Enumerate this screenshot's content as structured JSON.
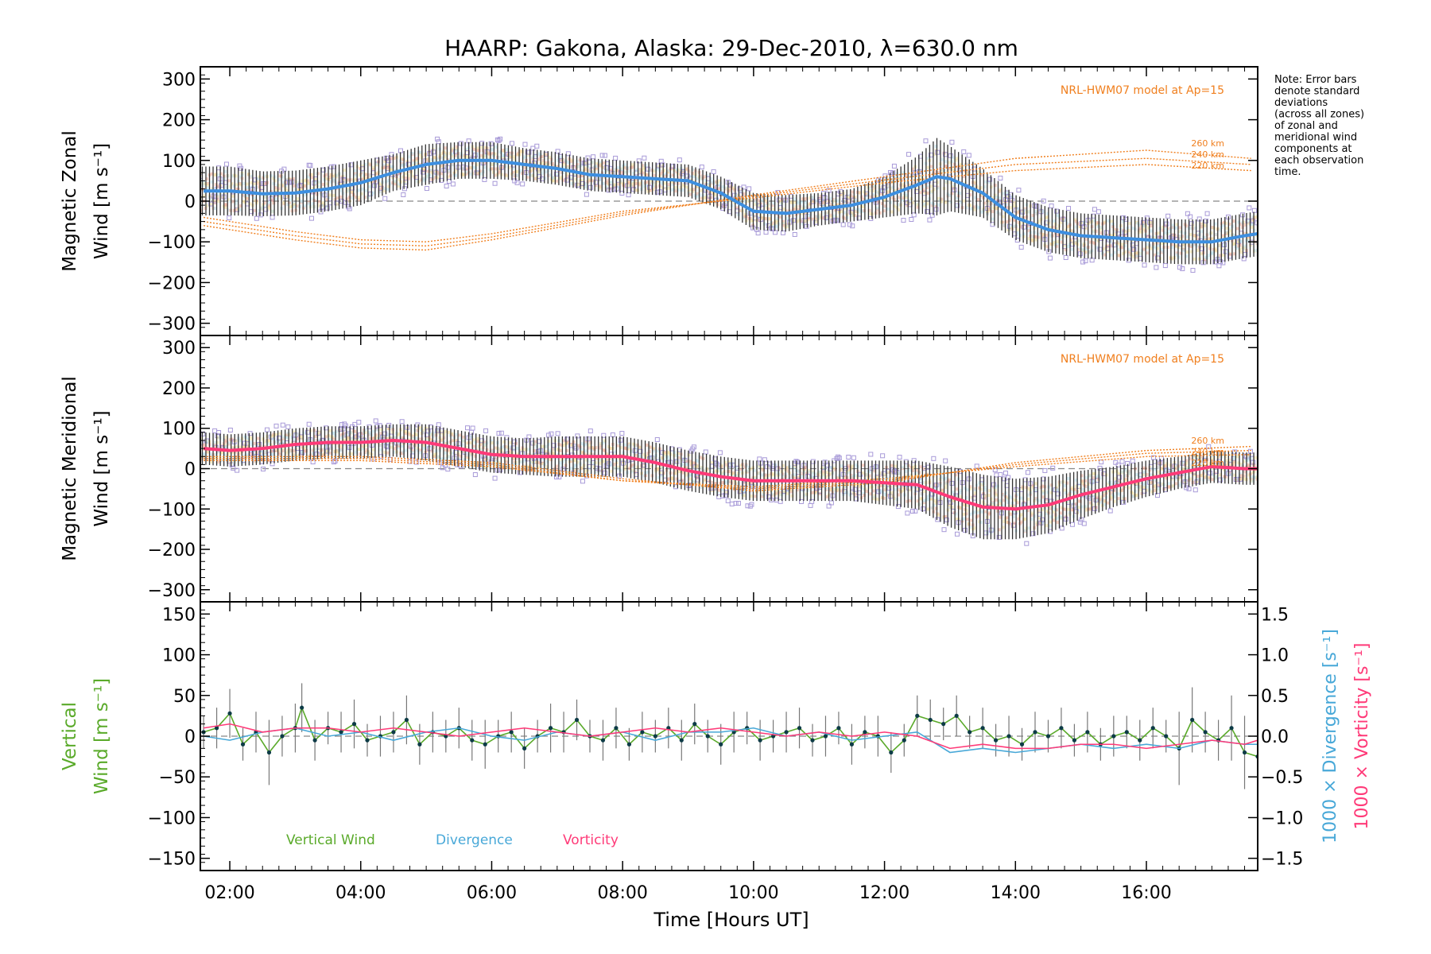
{
  "chart_data": {
    "title": "HAARP: Gakona,  Alaska: 29-Dec-2010, λ=630.0 nm",
    "note": [
      "Note: Error bars",
      "denote standard",
      "deviations",
      "(across all zones)",
      "of zonal and",
      "meridional wind",
      "components at",
      "each observation",
      "time."
    ],
    "x_axis": {
      "label": "Time [Hours UT]",
      "units": "hours UT",
      "range": [
        1.55,
        17.7
      ],
      "ticks": [
        2,
        4,
        6,
        8,
        10,
        12,
        14,
        16
      ],
      "tick_labels": [
        "02:00",
        "04:00",
        "06:00",
        "08:00",
        "10:00",
        "12:00",
        "14:00",
        "16:00"
      ]
    },
    "colors": {
      "zonal_mean": "#3d8fe0",
      "meridional_mean": "#ff3a78",
      "model": "#f07f1e",
      "scatter": "#a89ad8",
      "zone_band": "#f7b19a",
      "vertical_wind": "#5aaa2a",
      "divergence": "#48a8d8",
      "vorticity": "#ff3a78",
      "error_bar": "#333333",
      "zero_line": "#888888"
    },
    "panels": [
      {
        "type": "line",
        "ylabel": [
          "Magnetic Zonal",
          "Wind [m s⁻¹]"
        ],
        "ylim": [
          -330,
          330
        ],
        "yticks": [
          -300,
          -200,
          -100,
          0,
          100,
          200,
          300
        ],
        "model_label": "NRL-HWM07 model at Ap=15",
        "model_curves": [
          {
            "name": "260 km",
            "x": [
              1.6,
              3,
              4,
              5,
              6,
              8,
              10,
              12,
              14,
              16,
              17.6
            ],
            "y": [
              -60,
              -95,
              -115,
              -120,
              -95,
              -35,
              15,
              60,
              105,
              125,
              105
            ]
          },
          {
            "name": "240 km",
            "x": [
              1.6,
              3,
              4,
              5,
              6,
              8,
              10,
              12,
              14,
              16,
              17.6
            ],
            "y": [
              -50,
              -85,
              -105,
              -110,
              -88,
              -30,
              12,
              52,
              90,
              105,
              90
            ]
          },
          {
            "name": "220 km",
            "x": [
              1.6,
              3,
              4,
              5,
              6,
              8,
              10,
              12,
              14,
              16,
              17.6
            ],
            "y": [
              -40,
              -75,
              -95,
              -100,
              -80,
              -25,
              8,
              45,
              75,
              90,
              75
            ]
          }
        ],
        "mean": {
          "x": [
            1.6,
            2,
            2.5,
            3,
            3.5,
            4,
            4.5,
            5,
            5.5,
            6,
            6.5,
            7,
            7.5,
            8,
            8.5,
            9,
            9.5,
            10,
            10.5,
            11,
            11.5,
            12,
            12.5,
            12.8,
            13,
            13.5,
            14,
            14.5,
            15,
            15.5,
            16,
            16.5,
            17,
            17.5,
            17.7
          ],
          "y": [
            25,
            25,
            18,
            20,
            30,
            45,
            70,
            90,
            100,
            100,
            90,
            80,
            65,
            60,
            55,
            50,
            20,
            -25,
            -30,
            -20,
            -10,
            10,
            40,
            60,
            55,
            20,
            -40,
            -70,
            -85,
            -90,
            -95,
            -100,
            -100,
            -85,
            -80
          ],
          "err": [
            60,
            60,
            55,
            55,
            55,
            55,
            45,
            50,
            45,
            45,
            40,
            40,
            40,
            40,
            40,
            40,
            40,
            45,
            45,
            40,
            40,
            50,
            70,
            95,
            80,
            60,
            55,
            55,
            55,
            55,
            55,
            55,
            55,
            55,
            55
          ]
        }
      },
      {
        "type": "line",
        "ylabel": [
          "Magnetic Meridional",
          "Wind [m s⁻¹]"
        ],
        "ylim": [
          -330,
          330
        ],
        "yticks": [
          -300,
          -200,
          -100,
          0,
          100,
          200,
          300
        ],
        "model_label": "NRL-HWM07 model at Ap=15",
        "model_curves": [
          {
            "name": "260 km",
            "x": [
              1.6,
              4,
              6,
              8,
              10,
              12,
              14,
              16,
              17.6
            ],
            "y": [
              30,
              30,
              15,
              -25,
              -55,
              -35,
              15,
              45,
              55
            ]
          },
          {
            "name": "240 km",
            "x": [
              1.6,
              4,
              6,
              8,
              10,
              12,
              14,
              16,
              17.6
            ],
            "y": [
              25,
              25,
              10,
              -30,
              -50,
              -30,
              10,
              38,
              45
            ]
          },
          {
            "name": "220 km",
            "x": [
              1.6,
              4,
              6,
              8,
              10,
              12,
              14,
              16,
              17.6
            ],
            "y": [
              20,
              20,
              5,
              -30,
              -45,
              -25,
              5,
              30,
              35
            ]
          }
        ],
        "mean": {
          "x": [
            1.6,
            2,
            2.5,
            3,
            3.5,
            4,
            4.5,
            5,
            5.5,
            6,
            6.5,
            7,
            7.5,
            8,
            8.5,
            9,
            9.5,
            10,
            10.5,
            11,
            11.5,
            12,
            12.5,
            13,
            13.5,
            14,
            14.5,
            15,
            15.5,
            16,
            16.5,
            17,
            17.5,
            17.7
          ],
          "y": [
            50,
            45,
            50,
            60,
            65,
            65,
            70,
            65,
            50,
            35,
            30,
            30,
            30,
            30,
            15,
            -5,
            -20,
            -30,
            -30,
            -30,
            -30,
            -35,
            -40,
            -70,
            -95,
            -100,
            -90,
            -65,
            -45,
            -25,
            -10,
            5,
            0,
            0
          ],
          "err": [
            40,
            40,
            40,
            40,
            40,
            40,
            40,
            45,
            45,
            45,
            45,
            50,
            50,
            50,
            50,
            50,
            50,
            50,
            50,
            50,
            50,
            55,
            60,
            75,
            80,
            75,
            70,
            60,
            50,
            45,
            40,
            40,
            40,
            40
          ]
        }
      },
      {
        "type": "line",
        "ylabel": [
          "Vertical",
          "Wind [m s⁻¹]"
        ],
        "ylim": [
          -165,
          165
        ],
        "yticks": [
          -150,
          -100,
          -50,
          0,
          50,
          100,
          150
        ],
        "right_axis": {
          "ylim": [
            -1.65,
            1.65
          ],
          "yticks": [
            -1.5,
            -1.0,
            -0.5,
            0.0,
            0.5,
            1.0,
            1.5
          ],
          "tick_labels": [
            "−1.5",
            "−1.0",
            "−0.5",
            "0.0",
            "0.5",
            "1.0",
            "1.5"
          ],
          "labels": [
            "1000 × Divergence [s⁻¹]",
            "1000 × Vorticity [s⁻¹]"
          ]
        },
        "legend": [
          "Vertical Wind",
          "Divergence",
          "Vorticity"
        ],
        "legend_placement": "bottom-left",
        "series": [
          {
            "name": "Vertical Wind",
            "axis": "left",
            "x": [
              1.6,
              1.8,
              2.0,
              2.2,
              2.4,
              2.6,
              2.8,
              3.0,
              3.1,
              3.3,
              3.5,
              3.7,
              3.9,
              4.1,
              4.3,
              4.5,
              4.7,
              4.9,
              5.1,
              5.3,
              5.5,
              5.7,
              5.9,
              6.1,
              6.3,
              6.5,
              6.7,
              6.9,
              7.1,
              7.3,
              7.5,
              7.7,
              7.9,
              8.1,
              8.3,
              8.5,
              8.7,
              8.9,
              9.1,
              9.3,
              9.5,
              9.7,
              9.9,
              10.1,
              10.3,
              10.5,
              10.7,
              10.9,
              11.1,
              11.3,
              11.5,
              11.7,
              11.9,
              12.1,
              12.3,
              12.5,
              12.7,
              12.9,
              13.1,
              13.3,
              13.5,
              13.7,
              13.9,
              14.1,
              14.3,
              14.5,
              14.7,
              14.9,
              15.1,
              15.3,
              15.5,
              15.7,
              15.9,
              16.1,
              16.3,
              16.5,
              16.7,
              16.9,
              17.1,
              17.3,
              17.5,
              17.7
            ],
            "y": [
              5,
              10,
              28,
              -10,
              5,
              -20,
              0,
              10,
              35,
              -5,
              10,
              5,
              15,
              -5,
              0,
              5,
              20,
              -10,
              5,
              0,
              10,
              -5,
              -10,
              0,
              5,
              -15,
              0,
              10,
              5,
              20,
              0,
              -5,
              10,
              -10,
              5,
              0,
              10,
              -5,
              15,
              0,
              -10,
              5,
              10,
              -5,
              0,
              5,
              10,
              -5,
              0,
              10,
              -10,
              5,
              0,
              -20,
              -5,
              25,
              20,
              15,
              25,
              5,
              10,
              -5,
              0,
              -10,
              5,
              0,
              10,
              -5,
              5,
              -10,
              0,
              5,
              -5,
              10,
              0,
              -15,
              20,
              5,
              -5,
              10,
              -20,
              -25
            ],
            "err": [
              20,
              25,
              30,
              20,
              25,
              40,
              25,
              30,
              30,
              25,
              20,
              25,
              30,
              20,
              25,
              25,
              30,
              25,
              25,
              20,
              25,
              25,
              30,
              20,
              25,
              25,
              20,
              30,
              25,
              25,
              20,
              25,
              25,
              20,
              25,
              20,
              25,
              25,
              25,
              20,
              25,
              25,
              20,
              25,
              20,
              25,
              25,
              20,
              25,
              20,
              25,
              20,
              25,
              25,
              20,
              25,
              25,
              20,
              25,
              20,
              25,
              20,
              25,
              20,
              25,
              20,
              25,
              20,
              25,
              20,
              25,
              20,
              25,
              25,
              20,
              45,
              40,
              25,
              25,
              40,
              45,
              30
            ]
          },
          {
            "name": "Divergence",
            "axis": "right",
            "x": [
              1.6,
              2.0,
              2.5,
              3.0,
              3.5,
              4.0,
              4.5,
              5.0,
              5.5,
              6.0,
              6.5,
              7.0,
              7.5,
              8.0,
              8.5,
              9.0,
              9.5,
              10.0,
              10.5,
              11.0,
              11.5,
              12.0,
              12.5,
              13.0,
              13.5,
              14.0,
              14.5,
              15.0,
              15.5,
              16.0,
              16.5,
              17.0,
              17.5,
              17.7
            ],
            "y": [
              0.0,
              -0.05,
              0.05,
              0.1,
              0.0,
              0.05,
              -0.05,
              0.05,
              0.1,
              0.0,
              -0.05,
              0.05,
              0.0,
              0.05,
              -0.05,
              0.05,
              0.05,
              0.1,
              0.0,
              0.05,
              -0.05,
              0.0,
              0.05,
              -0.2,
              -0.15,
              -0.2,
              -0.15,
              -0.1,
              -0.15,
              -0.1,
              -0.15,
              -0.05,
              -0.1,
              -0.1
            ]
          },
          {
            "name": "Vorticity",
            "axis": "right",
            "x": [
              1.6,
              2.0,
              2.5,
              3.0,
              3.5,
              4.0,
              4.5,
              5.0,
              5.5,
              6.0,
              6.5,
              7.0,
              7.5,
              8.0,
              8.5,
              9.0,
              9.5,
              10.0,
              10.5,
              11.0,
              11.5,
              12.0,
              12.5,
              13.0,
              13.5,
              14.0,
              14.5,
              15.0,
              15.5,
              16.0,
              16.5,
              17.0,
              17.5,
              17.7
            ],
            "y": [
              0.1,
              0.15,
              0.05,
              0.1,
              0.1,
              0.05,
              0.1,
              0.05,
              0.0,
              0.05,
              0.1,
              0.05,
              0.0,
              0.05,
              0.1,
              0.05,
              0.1,
              0.05,
              0.0,
              0.05,
              0.0,
              0.05,
              0.0,
              -0.15,
              -0.1,
              -0.15,
              -0.15,
              -0.1,
              -0.1,
              -0.15,
              -0.1,
              -0.05,
              -0.1,
              -0.05
            ]
          }
        ]
      }
    ]
  }
}
